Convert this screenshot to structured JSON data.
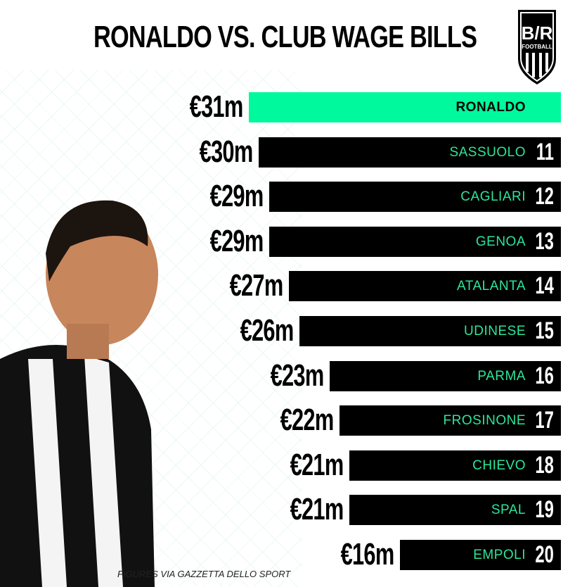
{
  "title": "RONALDO VS. CLUB WAGE BILLS",
  "logo": {
    "text": "B/R",
    "sub": "FOOTBALL"
  },
  "footer": "FIGURES VIA GAZZETTA DELLO SPORT",
  "colors": {
    "highlight": "#00f99c",
    "bar": "#000000",
    "club_text": "#2de59a"
  },
  "chart_data": {
    "type": "bar",
    "orientation": "horizontal",
    "title": "RONALDO VS. CLUB WAGE BILLS",
    "unit": "€m",
    "categories": [
      "RONALDO",
      "SASSUOLO",
      "CAGLIARI",
      "GENOA",
      "ATALANTA",
      "UDINESE",
      "PARMA",
      "FROSINONE",
      "CHIEVO",
      "SPAL",
      "EMPOLI"
    ],
    "ranks": [
      "",
      "11",
      "12",
      "13",
      "14",
      "15",
      "16",
      "17",
      "18",
      "19",
      "20"
    ],
    "labels": [
      "€31m",
      "€30m",
      "€29m",
      "€29m",
      "€27m",
      "€26m",
      "€23m",
      "€22m",
      "€21m",
      "€21m",
      "€16m"
    ],
    "values": [
      31,
      30,
      29,
      29,
      27,
      26,
      23,
      22,
      21,
      21,
      16
    ],
    "highlight": "RONALDO"
  }
}
